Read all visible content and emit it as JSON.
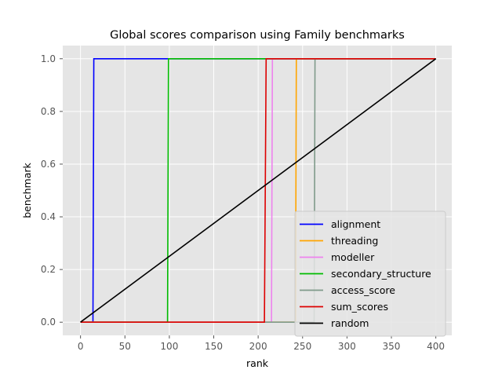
{
  "chart_data": {
    "type": "line",
    "title": "Global scores comparison using Family benchmarks",
    "xlabel": "rank",
    "ylabel": "benchmark",
    "xlim": [
      -20,
      418
    ],
    "ylim": [
      -0.05,
      1.05
    ],
    "xticks": [
      0,
      50,
      100,
      150,
      200,
      250,
      300,
      350,
      400
    ],
    "yticks": [
      0.0,
      0.2,
      0.4,
      0.6,
      0.8,
      1.0
    ],
    "xtick_labels": [
      "0",
      "50",
      "100",
      "150",
      "200",
      "250",
      "300",
      "350",
      "400"
    ],
    "ytick_labels": [
      "0.0",
      "0.2",
      "0.4",
      "0.6",
      "0.8",
      "1.0"
    ],
    "grid": true,
    "legend_position": "lower-right",
    "series": [
      {
        "name": "alignment",
        "color": "#0000ff",
        "x": [
          0,
          14,
          15,
          400
        ],
        "y": [
          0,
          0,
          1,
          1
        ]
      },
      {
        "name": "threading",
        "color": "#ffa500",
        "x": [
          0,
          242,
          243,
          400
        ],
        "y": [
          0,
          0,
          1,
          1
        ]
      },
      {
        "name": "modeller",
        "color": "#ee82ee",
        "x": [
          0,
          215,
          216,
          400
        ],
        "y": [
          0,
          0,
          1,
          1
        ]
      },
      {
        "name": "secondary_structure",
        "color": "#00bb00",
        "x": [
          0,
          98,
          99,
          400
        ],
        "y": [
          0,
          0,
          1,
          1
        ]
      },
      {
        "name": "access_score",
        "color": "#7f9a8a",
        "x": [
          0,
          263,
          264,
          400
        ],
        "y": [
          0,
          0,
          1,
          1
        ]
      },
      {
        "name": "sum_scores",
        "color": "#dd0000",
        "x": [
          0,
          207,
          209,
          400
        ],
        "y": [
          0,
          0,
          1,
          1
        ]
      },
      {
        "name": "random",
        "color": "#000000",
        "x": [
          0,
          400
        ],
        "y": [
          0,
          1
        ]
      }
    ]
  }
}
